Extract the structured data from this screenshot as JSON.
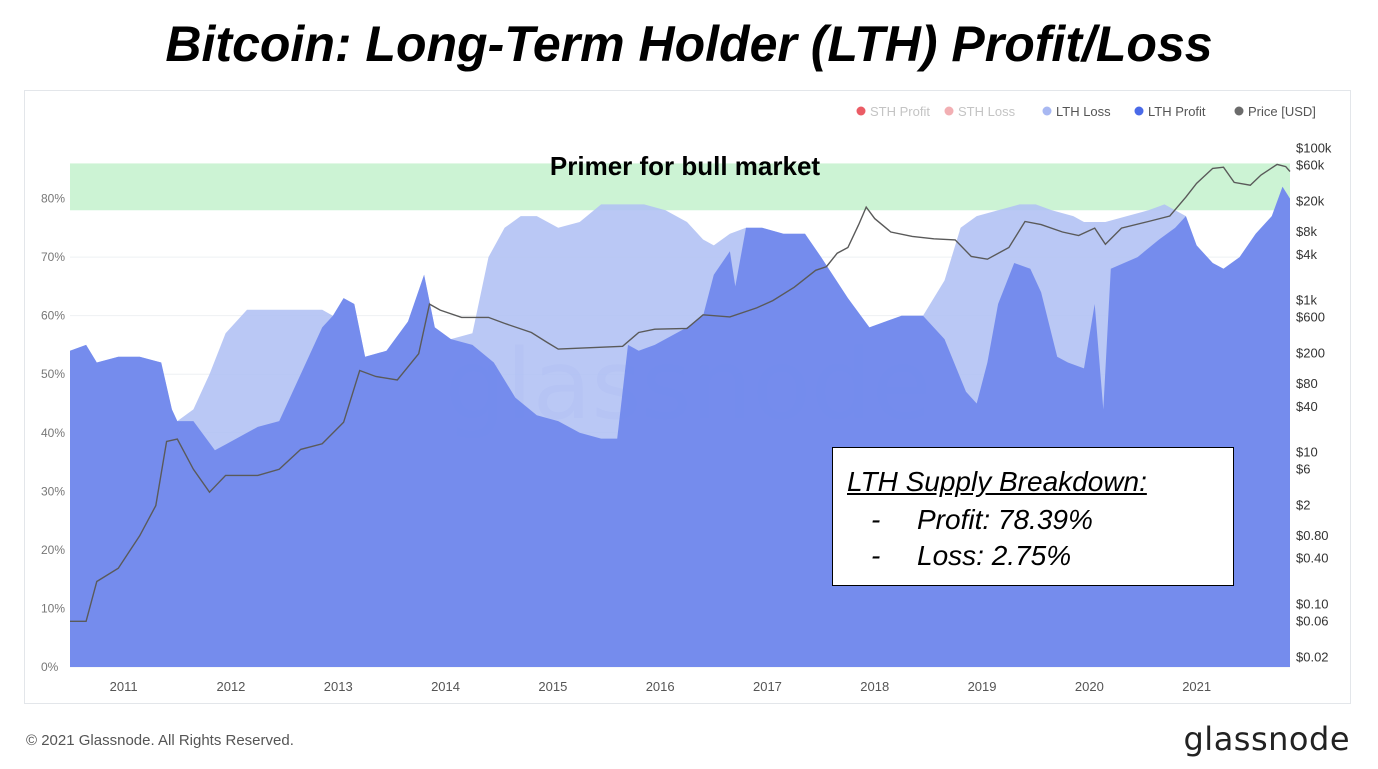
{
  "title": "Bitcoin: Long-Term Holder (LTH) Profit/Loss",
  "footer": {
    "copyright": "© 2021 Glassnode. All Rights Reserved.",
    "logo_text": "glassnode"
  },
  "watermark": "glassnode",
  "annotation_band": {
    "label": "Primer for bull market",
    "range_pct": [
      78,
      86
    ],
    "color": "#ccf3d4"
  },
  "breakdown": {
    "heading": "LTH Supply Breakdown:",
    "items": [
      {
        "dash": "-",
        "text": "Profit: 78.39%"
      },
      {
        "dash": "-",
        "text": "Loss: 2.75%"
      }
    ]
  },
  "chart_data": {
    "type": "area",
    "legend_position": "top-right",
    "legend": [
      {
        "name": "STH Profit",
        "color": "#e8404a",
        "dimmed": true
      },
      {
        "name": "STH Loss",
        "color": "#f0a1a6",
        "dimmed": true
      },
      {
        "name": "LTH Loss",
        "color": "#a8b8f2",
        "dimmed": false
      },
      {
        "name": "LTH Profit",
        "color": "#4a6ae8",
        "dimmed": false
      },
      {
        "name": "Price [USD]",
        "color": "#6b6b6b",
        "dimmed": false
      }
    ],
    "x_ticks": [
      "2011",
      "2012",
      "2013",
      "2014",
      "2015",
      "2016",
      "2017",
      "2018",
      "2019",
      "2020",
      "2021"
    ],
    "x_range": [
      2010.55,
      2021.92
    ],
    "y_left": {
      "range": [
        0,
        90
      ],
      "ticks": [
        "0%",
        "10%",
        "20%",
        "30%",
        "40%",
        "50%",
        "60%",
        "70%",
        "80%"
      ]
    },
    "y_right": {
      "scale": "log",
      "range": [
        0.015,
        130000
      ],
      "ticks": [
        {
          "label": "$100k",
          "value": 100000
        },
        {
          "label": "$60k",
          "value": 60000
        },
        {
          "label": "$20k",
          "value": 20000
        },
        {
          "label": "$8k",
          "value": 8000
        },
        {
          "label": "$4k",
          "value": 4000
        },
        {
          "label": "$1k",
          "value": 1000
        },
        {
          "label": "$600",
          "value": 600
        },
        {
          "label": "$200",
          "value": 200
        },
        {
          "label": "$80",
          "value": 80
        },
        {
          "label": "$40",
          "value": 40
        },
        {
          "label": "$10",
          "value": 10
        },
        {
          "label": "$6",
          "value": 6
        },
        {
          "label": "$2",
          "value": 2
        },
        {
          "label": "$0.80",
          "value": 0.8
        },
        {
          "label": "$0.40",
          "value": 0.4
        },
        {
          "label": "$0.10",
          "value": 0.1
        },
        {
          "label": "$0.06",
          "value": 0.06
        },
        {
          "label": "$0.02",
          "value": 0.02
        }
      ]
    },
    "series": [
      {
        "name": "LTH Profit",
        "color": "#7189ec",
        "points": [
          [
            2010.55,
            54
          ],
          [
            2010.7,
            55
          ],
          [
            2010.8,
            52
          ],
          [
            2011.0,
            53
          ],
          [
            2011.2,
            53
          ],
          [
            2011.4,
            52
          ],
          [
            2011.5,
            44
          ],
          [
            2011.55,
            42
          ],
          [
            2011.7,
            42
          ],
          [
            2011.9,
            37
          ],
          [
            2012.0,
            38
          ],
          [
            2012.3,
            41
          ],
          [
            2012.5,
            42
          ],
          [
            2012.7,
            50
          ],
          [
            2012.9,
            58
          ],
          [
            2013.0,
            60
          ],
          [
            2013.1,
            63
          ],
          [
            2013.2,
            62
          ],
          [
            2013.3,
            53
          ],
          [
            2013.5,
            54
          ],
          [
            2013.7,
            59
          ],
          [
            2013.85,
            67
          ],
          [
            2013.95,
            58
          ],
          [
            2014.1,
            56
          ],
          [
            2014.3,
            55
          ],
          [
            2014.5,
            52
          ],
          [
            2014.7,
            46
          ],
          [
            2014.9,
            43
          ],
          [
            2015.1,
            42
          ],
          [
            2015.3,
            40
          ],
          [
            2015.5,
            39
          ],
          [
            2015.65,
            39
          ],
          [
            2015.75,
            55
          ],
          [
            2015.85,
            54
          ],
          [
            2016.0,
            55
          ],
          [
            2016.3,
            58
          ],
          [
            2016.45,
            60
          ],
          [
            2016.55,
            67
          ],
          [
            2016.7,
            71
          ],
          [
            2016.75,
            65
          ],
          [
            2016.85,
            75
          ],
          [
            2017.0,
            75
          ],
          [
            2017.2,
            74
          ],
          [
            2017.4,
            74
          ],
          [
            2017.55,
            70
          ],
          [
            2017.8,
            63
          ],
          [
            2018.0,
            58
          ],
          [
            2018.3,
            60
          ],
          [
            2018.5,
            60
          ],
          [
            2018.7,
            56
          ],
          [
            2018.9,
            47
          ],
          [
            2019.0,
            45
          ],
          [
            2019.1,
            52
          ],
          [
            2019.2,
            62
          ],
          [
            2019.35,
            69
          ],
          [
            2019.5,
            68
          ],
          [
            2019.6,
            64
          ],
          [
            2019.75,
            53
          ],
          [
            2019.85,
            52
          ],
          [
            2020.0,
            51
          ],
          [
            2020.1,
            62
          ],
          [
            2020.18,
            44
          ],
          [
            2020.25,
            68
          ],
          [
            2020.5,
            70
          ],
          [
            2020.7,
            73
          ],
          [
            2020.85,
            75
          ],
          [
            2020.95,
            77
          ],
          [
            2021.05,
            72
          ],
          [
            2021.2,
            69
          ],
          [
            2021.3,
            68
          ],
          [
            2021.45,
            70
          ],
          [
            2021.6,
            74
          ],
          [
            2021.75,
            77
          ],
          [
            2021.85,
            82
          ],
          [
            2021.92,
            80
          ]
        ]
      },
      {
        "name": "LTH Loss",
        "color": "#b0c0f4",
        "points": [
          [
            2010.55,
            54
          ],
          [
            2010.7,
            55
          ],
          [
            2010.8,
            52
          ],
          [
            2011.0,
            53
          ],
          [
            2011.2,
            53
          ],
          [
            2011.4,
            52
          ],
          [
            2011.5,
            44
          ],
          [
            2011.55,
            42
          ],
          [
            2011.7,
            44
          ],
          [
            2011.85,
            50
          ],
          [
            2012.0,
            57
          ],
          [
            2012.2,
            61
          ],
          [
            2012.4,
            61
          ],
          [
            2012.6,
            61
          ],
          [
            2012.75,
            61
          ],
          [
            2012.9,
            61
          ],
          [
            2013.0,
            60
          ],
          [
            2013.1,
            63
          ],
          [
            2013.2,
            62
          ],
          [
            2013.3,
            53
          ],
          [
            2013.5,
            54
          ],
          [
            2013.7,
            59
          ],
          [
            2013.85,
            67
          ],
          [
            2013.95,
            58
          ],
          [
            2014.1,
            56
          ],
          [
            2014.3,
            57
          ],
          [
            2014.45,
            70
          ],
          [
            2014.6,
            75
          ],
          [
            2014.75,
            77
          ],
          [
            2014.9,
            77
          ],
          [
            2015.1,
            75
          ],
          [
            2015.3,
            76
          ],
          [
            2015.5,
            79
          ],
          [
            2015.7,
            79
          ],
          [
            2015.9,
            79
          ],
          [
            2016.1,
            78
          ],
          [
            2016.3,
            76
          ],
          [
            2016.45,
            73
          ],
          [
            2016.55,
            72
          ],
          [
            2016.7,
            74
          ],
          [
            2016.85,
            75
          ],
          [
            2017.0,
            75
          ],
          [
            2017.2,
            74
          ],
          [
            2017.4,
            74
          ],
          [
            2017.55,
            70
          ],
          [
            2017.8,
            63
          ],
          [
            2018.0,
            58
          ],
          [
            2018.3,
            60
          ],
          [
            2018.5,
            60
          ],
          [
            2018.7,
            66
          ],
          [
            2018.85,
            75
          ],
          [
            2019.0,
            77
          ],
          [
            2019.2,
            78
          ],
          [
            2019.4,
            79
          ],
          [
            2019.55,
            79
          ],
          [
            2019.7,
            78
          ],
          [
            2019.9,
            77
          ],
          [
            2020.0,
            76
          ],
          [
            2020.2,
            76
          ],
          [
            2020.4,
            77
          ],
          [
            2020.6,
            78
          ],
          [
            2020.75,
            79
          ],
          [
            2020.85,
            78
          ],
          [
            2020.95,
            77
          ],
          [
            2021.05,
            72
          ],
          [
            2021.2,
            69
          ],
          [
            2021.3,
            68
          ],
          [
            2021.45,
            70
          ],
          [
            2021.6,
            74
          ],
          [
            2021.75,
            77
          ],
          [
            2021.85,
            82
          ],
          [
            2021.92,
            80
          ]
        ]
      },
      {
        "name": "Price [USD]",
        "color": "#5a5a5a",
        "points": [
          [
            2010.55,
            0.06
          ],
          [
            2010.7,
            0.06
          ],
          [
            2010.8,
            0.2
          ],
          [
            2011.0,
            0.3
          ],
          [
            2011.2,
            0.8
          ],
          [
            2011.35,
            2
          ],
          [
            2011.45,
            14
          ],
          [
            2011.55,
            15
          ],
          [
            2011.7,
            6
          ],
          [
            2011.85,
            3
          ],
          [
            2012.0,
            5
          ],
          [
            2012.3,
            5
          ],
          [
            2012.5,
            6
          ],
          [
            2012.7,
            11
          ],
          [
            2012.9,
            13
          ],
          [
            2013.1,
            25
          ],
          [
            2013.25,
            120
          ],
          [
            2013.4,
            100
          ],
          [
            2013.6,
            90
          ],
          [
            2013.8,
            200
          ],
          [
            2013.9,
            900
          ],
          [
            2014.0,
            750
          ],
          [
            2014.2,
            600
          ],
          [
            2014.45,
            600
          ],
          [
            2014.6,
            500
          ],
          [
            2014.85,
            380
          ],
          [
            2015.0,
            280
          ],
          [
            2015.1,
            230
          ],
          [
            2015.4,
            240
          ],
          [
            2015.7,
            250
          ],
          [
            2015.85,
            380
          ],
          [
            2016.0,
            420
          ],
          [
            2016.3,
            430
          ],
          [
            2016.45,
            650
          ],
          [
            2016.7,
            610
          ],
          [
            2016.95,
            800
          ],
          [
            2017.1,
            1000
          ],
          [
            2017.3,
            1500
          ],
          [
            2017.5,
            2500
          ],
          [
            2017.6,
            2800
          ],
          [
            2017.7,
            4200
          ],
          [
            2017.8,
            5000
          ],
          [
            2017.9,
            10000
          ],
          [
            2017.97,
            17000
          ],
          [
            2018.05,
            12000
          ],
          [
            2018.2,
            8000
          ],
          [
            2018.4,
            7000
          ],
          [
            2018.6,
            6500
          ],
          [
            2018.8,
            6300
          ],
          [
            2018.95,
            3800
          ],
          [
            2019.1,
            3500
          ],
          [
            2019.3,
            5000
          ],
          [
            2019.45,
            11000
          ],
          [
            2019.6,
            10000
          ],
          [
            2019.8,
            8000
          ],
          [
            2019.95,
            7200
          ],
          [
            2020.1,
            9000
          ],
          [
            2020.2,
            5500
          ],
          [
            2020.35,
            9000
          ],
          [
            2020.6,
            11000
          ],
          [
            2020.8,
            13000
          ],
          [
            2020.95,
            23000
          ],
          [
            2021.05,
            35000
          ],
          [
            2021.2,
            55000
          ],
          [
            2021.3,
            57000
          ],
          [
            2021.4,
            36000
          ],
          [
            2021.55,
            33000
          ],
          [
            2021.65,
            45000
          ],
          [
            2021.8,
            62000
          ],
          [
            2021.88,
            58000
          ],
          [
            2021.92,
            50000
          ]
        ]
      }
    ]
  }
}
